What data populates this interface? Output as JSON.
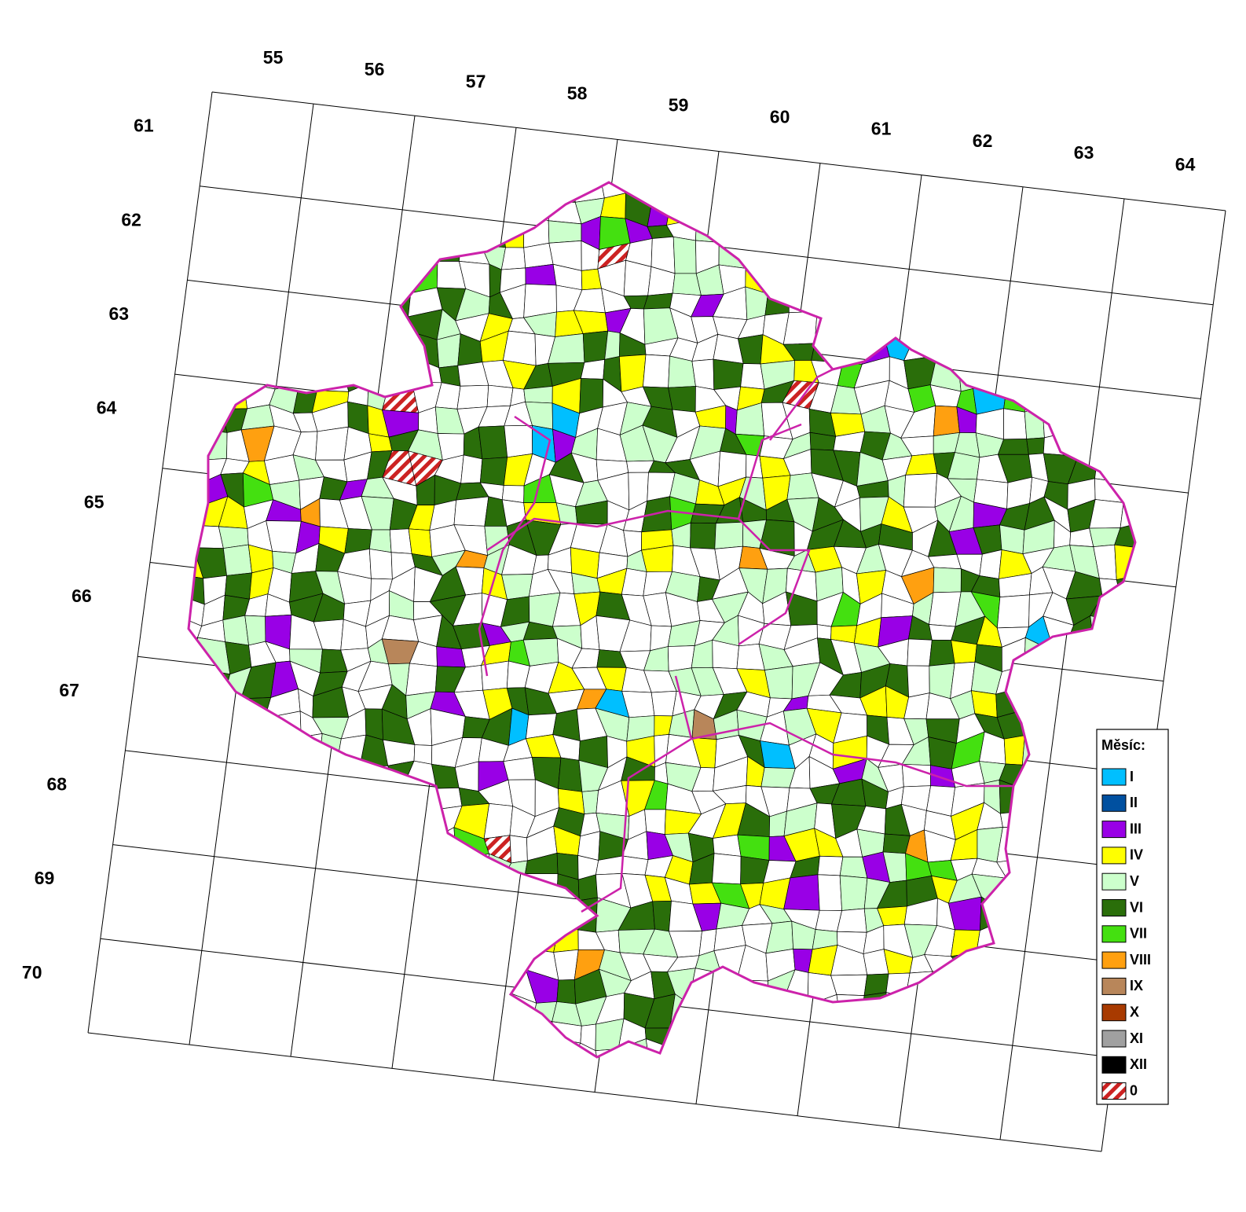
{
  "map": {
    "column_labels": [
      55,
      56,
      57,
      58,
      59,
      60,
      61,
      62,
      63,
      64
    ],
    "row_labels": [
      61,
      62,
      63,
      64,
      65,
      66,
      67,
      68,
      69,
      70
    ],
    "legend": {
      "title": "Měsíc:",
      "items": [
        {
          "label": "I",
          "color": "#00bfff"
        },
        {
          "label": "II",
          "color": "#0050a0"
        },
        {
          "label": "III",
          "color": "#9900e6"
        },
        {
          "label": "IV",
          "color": "#ffff00"
        },
        {
          "label": "V",
          "color": "#ccffcc"
        },
        {
          "label": "VI",
          "color": "#2a6e0a"
        },
        {
          "label": "VII",
          "color": "#44e010"
        },
        {
          "label": "VIII",
          "color": "#ffa010"
        },
        {
          "label": "IX",
          "color": "#b8865a"
        },
        {
          "label": "X",
          "color": "#a83a00"
        },
        {
          "label": "XI",
          "color": "#a0a0a0"
        },
        {
          "label": "XII",
          "color": "#000000"
        },
        {
          "label": "0",
          "color": "#cc2222",
          "hatched": true
        }
      ]
    }
  }
}
